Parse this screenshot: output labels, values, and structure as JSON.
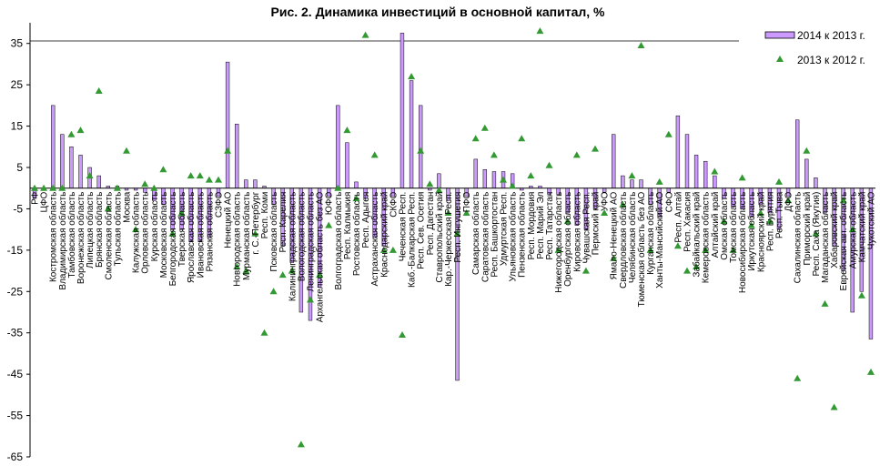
{
  "chart_data": {
    "type": "bar",
    "title": "Рис. 2. Динамика инвестиций в основной капитал, %",
    "xlabel": "",
    "ylabel": "",
    "ylim": [
      -65,
      40
    ],
    "yticks": [
      35,
      25,
      15,
      5,
      -5,
      -15,
      -25,
      -35,
      -45,
      -55,
      -65
    ],
    "legend_position": "top-right",
    "grid": false,
    "categories": [
      "РФ",
      "ЦФО",
      "Костромская область",
      "Владимирская область",
      "Тамбовская область",
      "Воронежская область",
      "Липецкая область",
      "Брянская область",
      "Смоленская область",
      "Тульская область",
      "Москва",
      "Калужская область",
      "Орловская область",
      "Курская область",
      "Московская область",
      "Белгородская область",
      "Тверская область",
      "Ярославская область",
      "Ивановская область",
      "Рязанская область",
      "СЗФО",
      "Ненецкий АО",
      "Новгородская область",
      "Мурманская область",
      "г. С.-Петербург",
      "Респ. Коми",
      "Псковская область",
      "Респ. Карелия",
      "Калининградская область",
      "Вологодская область",
      "Ленинградская область",
      "Архангельская область без АО",
      "ЮФО",
      "Волгоградская область",
      "Респ. Калмыкия",
      "Ростовская область",
      "Респ. Адыгея",
      "Астраханская область",
      "Краснодарский край",
      "СКФО",
      "Чеченская Респ.",
      "Каб.-Балкарская Респ.",
      "Респ. Сев. Осетия",
      "Респ. Дагестан",
      "Ставропольский край",
      "Кар.-Черкесская Респ.",
      "Респ. Ингушетия",
      "ПФО",
      "Самарская область",
      "Саратовская область",
      "Респ. Башкортостан",
      "Удмуртская Респ.",
      "Ульяновская область",
      "Пензенская область",
      "Респ. Мордовия",
      "Респ. Марий Эл",
      "Респ. Татарстан",
      "Нижегородская область",
      "Оренбургская область",
      "Кировская область",
      "Чувашская Респ.",
      "Пермский край",
      "УФО",
      "Ямало-Ненецкий АО",
      "Свердловская область",
      "Челябинская область",
      "Тюменская область без АО",
      "Курганская область",
      "Ханты-Мансийский АО",
      "СФО",
      "Респ. Алтай",
      "Респ. Хакасия",
      "Забайкальский край",
      "Кемеровская область",
      "Алтайский край",
      "Омская область",
      "Томская область",
      "Новосибирская область",
      "Иркутская область",
      "Красноярский край",
      "Респ. Бурятия",
      "Респ. Тыва",
      "ДФО",
      "Сахалинская область",
      "Приморский край",
      "Респ. Саха (Якутия)",
      "Магаданская область",
      "Хабаровский край",
      "Еврейская авт. область",
      "Амурская область",
      "Камчатский край",
      "Чукотский АО"
    ],
    "series": [
      {
        "name": "2014 к 2013 г.",
        "type": "bar",
        "color": "#cc99ff",
        "values": [
          -2.5,
          -0.5,
          20,
          13,
          10,
          8,
          5,
          3,
          0.5,
          0.5,
          -0.5,
          -0.5,
          -1,
          -3,
          -4,
          -10,
          -10,
          -13,
          -13,
          -12,
          -2,
          30.5,
          15.5,
          2,
          2,
          0.5,
          -4,
          -14,
          -18,
          -30,
          -32,
          -24,
          -2,
          20,
          11,
          1.5,
          -2.5,
          -12,
          -14,
          -2,
          37.5,
          26,
          20,
          -0.5,
          3.5,
          -3,
          -46.5,
          -2,
          7,
          4.5,
          4,
          4,
          3.5,
          -0.5,
          0.5,
          0.5,
          -1.5,
          -1.5,
          -6,
          -9,
          -10,
          -5,
          -1,
          13,
          3,
          2,
          2,
          -4,
          -7,
          -1,
          17.5,
          13,
          8,
          6.5,
          3,
          -2.5,
          -4.5,
          -5,
          -7,
          -4,
          -6,
          -10,
          -2,
          16.5,
          7,
          2.5,
          -6,
          -14,
          -20,
          -30,
          -25,
          -36.5
        ]
      },
      {
        "name": "2013 к 2012 г.",
        "type": "scatter",
        "color": "#339933",
        "values": [
          0,
          0,
          0,
          0,
          13,
          14,
          3,
          23.5,
          -5,
          0,
          9,
          -10,
          1,
          0,
          4.5,
          -11,
          -6,
          3,
          3,
          2,
          2,
          9,
          -19,
          -20,
          -11,
          -35,
          -25,
          -21,
          -20,
          -62,
          -27,
          -21,
          -9,
          0,
          14,
          -2.5,
          37,
          8,
          -15,
          -15,
          -35.5,
          27,
          9,
          1,
          -0.5,
          -6,
          -11,
          -6,
          12,
          14.5,
          8,
          2,
          0.5,
          12,
          3,
          38,
          5.5,
          -15,
          -8,
          8,
          -20,
          9.5,
          -6,
          -17,
          -4,
          3,
          34.5,
          -15,
          1.5,
          13,
          -14,
          -20,
          -19,
          -15,
          4,
          -8,
          -15,
          2.5,
          -9,
          -6,
          -8,
          1.5,
          -3,
          -46,
          9,
          -11,
          -28,
          -53,
          -3,
          -10,
          -26,
          -44.5
        ]
      }
    ]
  }
}
